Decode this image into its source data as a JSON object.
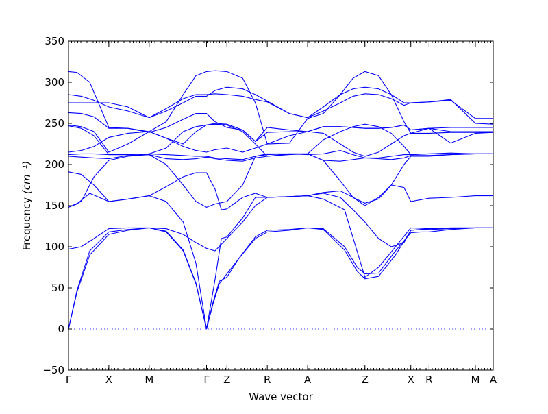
{
  "chart_data": {
    "type": "line",
    "title": "",
    "xlabel": "Wave vector",
    "ylabel": "Frequency",
    "ylabel_unit": "(cm⁻¹)",
    "ylim": [
      -50,
      350
    ],
    "yticks": [
      -50,
      0,
      50,
      100,
      150,
      200,
      250,
      300,
      350
    ],
    "grid": false,
    "zero_line": true,
    "colors": {
      "bands": "#0000ff",
      "axes": "#000000"
    },
    "x_labels": [
      "Γ",
      "X",
      "M",
      "Γ",
      "Z",
      "R",
      "A",
      "Z",
      "X",
      "R",
      "M",
      "A"
    ],
    "x_ticks": [
      0,
      0.095,
      0.19,
      0.325,
      0.373,
      0.468,
      0.563,
      0.698,
      0.806,
      0.849,
      0.958,
      1.0
    ],
    "bands": [
      {
        "name": "",
        "x": [
          0,
          0.02,
          0.05,
          0.095,
          0.14,
          0.19,
          0.23,
          0.27,
          0.3,
          0.325,
          0.34,
          0.355,
          0.373,
          0.4,
          0.44,
          0.468,
          0.52,
          0.563,
          0.6,
          0.65,
          0.68,
          0.698,
          0.73,
          0.77,
          0.806,
          0.83,
          0.849,
          0.9,
          0.958,
          1.0
        ],
        "y": [
          0,
          45,
          90,
          115,
          120,
          123,
          118,
          95,
          55,
          0,
          30,
          55,
          67,
          85,
          110,
          118,
          120,
          123,
          122,
          100,
          75,
          67,
          68,
          95,
          117,
          118,
          118,
          121,
          123,
          123
        ]
      },
      {
        "name": "",
        "x": [
          0,
          0.02,
          0.05,
          0.095,
          0.14,
          0.19,
          0.23,
          0.27,
          0.3,
          0.325,
          0.34,
          0.355,
          0.373,
          0.4,
          0.44,
          0.468,
          0.52,
          0.563,
          0.6,
          0.65,
          0.68,
          0.698,
          0.73,
          0.77,
          0.806,
          0.83,
          0.849,
          0.9,
          0.958,
          1.0
        ],
        "y": [
          0,
          47,
          95,
          118,
          121,
          123,
          119,
          96,
          56,
          0,
          32,
          58,
          63,
          85,
          112,
          120,
          121,
          123,
          121,
          96,
          70,
          61,
          64,
          90,
          120,
          121,
          121,
          122,
          123,
          123
        ]
      },
      {
        "name": "",
        "x": [
          0,
          0.03,
          0.06,
          0.095,
          0.14,
          0.19,
          0.23,
          0.27,
          0.3,
          0.325,
          0.345,
          0.373,
          0.41,
          0.44,
          0.468,
          0.52,
          0.563,
          0.6,
          0.64,
          0.67,
          0.698,
          0.73,
          0.76,
          0.79,
          0.806,
          0.849,
          0.9,
          0.958,
          1.0
        ],
        "y": [
          97,
          100,
          110,
          122,
          123,
          123,
          122,
          115,
          105,
          98,
          95,
          110,
          130,
          150,
          160,
          161,
          162,
          165,
          160,
          145,
          130,
          110,
          100,
          105,
          120,
          122,
          123,
          123,
          123
        ]
      },
      {
        "name": "",
        "x": [
          0,
          0.02,
          0.05,
          0.095,
          0.14,
          0.19,
          0.23,
          0.27,
          0.3,
          0.325,
          0.345,
          0.36,
          0.373,
          0.41,
          0.44,
          0.468,
          0.52,
          0.563,
          0.6,
          0.65,
          0.698,
          0.73,
          0.77,
          0.806,
          0.849,
          0.9,
          0.958,
          1.0
        ],
        "y": [
          148,
          152,
          165,
          155,
          158,
          162,
          155,
          130,
          80,
          0,
          60,
          110,
          112,
          135,
          160,
          160,
          161,
          162,
          158,
          145,
          63,
          75,
          100,
          123,
          122,
          123,
          123,
          123
        ]
      },
      {
        "name": "",
        "x": [
          0,
          0.03,
          0.06,
          0.095,
          0.14,
          0.19,
          0.23,
          0.27,
          0.3,
          0.325,
          0.345,
          0.36,
          0.373,
          0.41,
          0.44,
          0.468,
          0.52,
          0.563,
          0.6,
          0.64,
          0.67,
          0.698,
          0.73,
          0.76,
          0.79,
          0.806,
          0.849,
          0.9,
          0.958,
          1.0
        ],
        "y": [
          191,
          188,
          175,
          155,
          158,
          162,
          173,
          185,
          190,
          190,
          170,
          145,
          146,
          160,
          165,
          160,
          161,
          162,
          166,
          168,
          160,
          150,
          160,
          175,
          172,
          155,
          159,
          160,
          162,
          162
        ]
      },
      {
        "name": "",
        "x": [
          0,
          0.03,
          0.06,
          0.095,
          0.14,
          0.19,
          0.23,
          0.27,
          0.3,
          0.325,
          0.345,
          0.373,
          0.41,
          0.44,
          0.468,
          0.52,
          0.563,
          0.6,
          0.64,
          0.67,
          0.698,
          0.73,
          0.76,
          0.79,
          0.806,
          0.849,
          0.9,
          0.958,
          1.0
        ],
        "y": [
          148,
          155,
          185,
          205,
          210,
          212,
          200,
          175,
          155,
          148,
          152,
          155,
          175,
          210,
          213,
          213,
          213,
          205,
          180,
          160,
          153,
          158,
          175,
          200,
          210,
          210,
          212,
          213,
          213
        ]
      },
      {
        "name": "",
        "x": [
          0,
          0.03,
          0.06,
          0.095,
          0.14,
          0.19,
          0.23,
          0.27,
          0.3,
          0.325,
          0.345,
          0.373,
          0.41,
          0.44,
          0.468,
          0.52,
          0.563,
          0.6,
          0.64,
          0.67,
          0.698,
          0.73,
          0.76,
          0.79,
          0.806,
          0.849,
          0.9,
          0.958,
          1.0
        ],
        "y": [
          210,
          209,
          208,
          207,
          211,
          212,
          207,
          206,
          207,
          209,
          207,
          205,
          204,
          208,
          210,
          212,
          213,
          205,
          204,
          206,
          208,
          207,
          206,
          208,
          211,
          211,
          212,
          213,
          213
        ]
      },
      {
        "name": "",
        "x": [
          0,
          0.03,
          0.06,
          0.095,
          0.14,
          0.19,
          0.23,
          0.27,
          0.3,
          0.325,
          0.345,
          0.373,
          0.41,
          0.44,
          0.468,
          0.52,
          0.563,
          0.6,
          0.64,
          0.67,
          0.698,
          0.73,
          0.76,
          0.79,
          0.806,
          0.849,
          0.9,
          0.958,
          1.0
        ],
        "y": [
          212,
          213,
          213,
          212,
          212,
          213,
          212,
          211,
          210,
          210,
          208,
          207,
          206,
          210,
          212,
          213,
          212,
          213,
          217,
          212,
          208,
          208,
          210,
          212,
          212,
          213,
          213,
          213,
          213
        ]
      },
      {
        "name": "",
        "x": [
          0,
          0.03,
          0.06,
          0.095,
          0.14,
          0.19,
          0.23,
          0.27,
          0.3,
          0.325,
          0.345,
          0.373,
          0.41,
          0.44,
          0.468,
          0.52,
          0.563,
          0.6,
          0.64,
          0.67,
          0.698,
          0.73,
          0.76,
          0.79,
          0.806,
          0.849,
          0.9,
          0.958,
          1.0
        ],
        "y": [
          215,
          217,
          222,
          233,
          238,
          240,
          232,
          222,
          217,
          215,
          218,
          220,
          215,
          220,
          225,
          235,
          240,
          238,
          225,
          215,
          210,
          215,
          225,
          235,
          238,
          238,
          239,
          239,
          239
        ]
      },
      {
        "name": "",
        "x": [
          0,
          0.03,
          0.06,
          0.095,
          0.14,
          0.19,
          0.23,
          0.27,
          0.3,
          0.325,
          0.345,
          0.373,
          0.41,
          0.44,
          0.468,
          0.52,
          0.563,
          0.6,
          0.64,
          0.67,
          0.698,
          0.73,
          0.76,
          0.79,
          0.806,
          0.849,
          0.9,
          0.958,
          1.0
        ],
        "y": [
          247,
          244,
          235,
          212,
          212,
          213,
          220,
          240,
          246,
          248,
          249,
          248,
          240,
          225,
          210,
          213,
          213,
          230,
          240,
          246,
          249,
          246,
          238,
          222,
          212,
          213,
          214,
          213,
          213
        ]
      },
      {
        "name": "",
        "x": [
          0,
          0.03,
          0.06,
          0.095,
          0.14,
          0.19,
          0.23,
          0.27,
          0.3,
          0.325,
          0.345,
          0.373,
          0.41,
          0.44,
          0.468,
          0.52,
          0.563,
          0.6,
          0.64,
          0.67,
          0.698,
          0.73,
          0.76,
          0.79,
          0.806,
          0.849,
          0.9,
          0.958,
          1.0
        ],
        "y": [
          248,
          246,
          240,
          215,
          225,
          240,
          232,
          225,
          240,
          248,
          250,
          249,
          242,
          228,
          245,
          242,
          240,
          246,
          246,
          245,
          244,
          244,
          245,
          248,
          242,
          244,
          245,
          245,
          245
        ]
      },
      {
        "name": "",
        "x": [
          0,
          0.03,
          0.06,
          0.095,
          0.14,
          0.19,
          0.23,
          0.27,
          0.3,
          0.325,
          0.345,
          0.373,
          0.41,
          0.44,
          0.468,
          0.52,
          0.563,
          0.6,
          0.64,
          0.67,
          0.698,
          0.73,
          0.76,
          0.79,
          0.806,
          0.849,
          0.9,
          0.958,
          1.0
        ],
        "y": [
          263,
          262,
          258,
          244,
          244,
          239,
          245,
          255,
          262,
          262,
          252,
          245,
          242,
          228,
          239,
          240,
          240,
          246,
          246,
          245,
          244,
          244,
          245,
          248,
          242,
          244,
          240,
          240,
          240
        ]
      },
      {
        "name": "",
        "x": [
          0,
          0.03,
          0.06,
          0.095,
          0.14,
          0.19,
          0.23,
          0.27,
          0.3,
          0.325,
          0.345,
          0.373,
          0.41,
          0.44,
          0.468,
          0.52,
          0.563,
          0.6,
          0.64,
          0.67,
          0.698,
          0.73,
          0.76,
          0.79,
          0.806,
          0.849,
          0.9,
          0.958,
          1.0
        ],
        "y": [
          275,
          275,
          275,
          275,
          270,
          257,
          268,
          280,
          285,
          285,
          286,
          285,
          283,
          279,
          276,
          262,
          257,
          265,
          275,
          283,
          286,
          285,
          280,
          272,
          275,
          276,
          279,
          250,
          249
        ]
      },
      {
        "name": "",
        "x": [
          0,
          0.03,
          0.06,
          0.095,
          0.14,
          0.19,
          0.23,
          0.27,
          0.3,
          0.325,
          0.345,
          0.373,
          0.41,
          0.44,
          0.468,
          0.52,
          0.563,
          0.6,
          0.64,
          0.67,
          0.698,
          0.73,
          0.76,
          0.79,
          0.806,
          0.849,
          0.9,
          0.958,
          1.0
        ],
        "y": [
          285,
          283,
          278,
          270,
          265,
          257,
          265,
          275,
          283,
          283,
          290,
          294,
          292,
          285,
          277,
          262,
          257,
          270,
          285,
          292,
          294,
          292,
          285,
          275,
          275,
          276,
          278,
          256,
          256
        ]
      },
      {
        "name": "",
        "x": [
          0,
          0.02,
          0.05,
          0.095,
          0.14,
          0.19,
          0.23,
          0.27,
          0.3,
          0.325,
          0.345,
          0.373,
          0.41,
          0.44,
          0.468,
          0.52,
          0.563,
          0.6,
          0.64,
          0.67,
          0.698,
          0.73,
          0.76,
          0.79,
          0.806,
          0.849,
          0.9,
          0.958,
          1.0
        ],
        "y": [
          313,
          312,
          300,
          245,
          244,
          240,
          252,
          285,
          308,
          313,
          314,
          313,
          305,
          275,
          225,
          226,
          256,
          262,
          285,
          305,
          313,
          308,
          285,
          252,
          238,
          244,
          226,
          238,
          239
        ]
      }
    ]
  }
}
